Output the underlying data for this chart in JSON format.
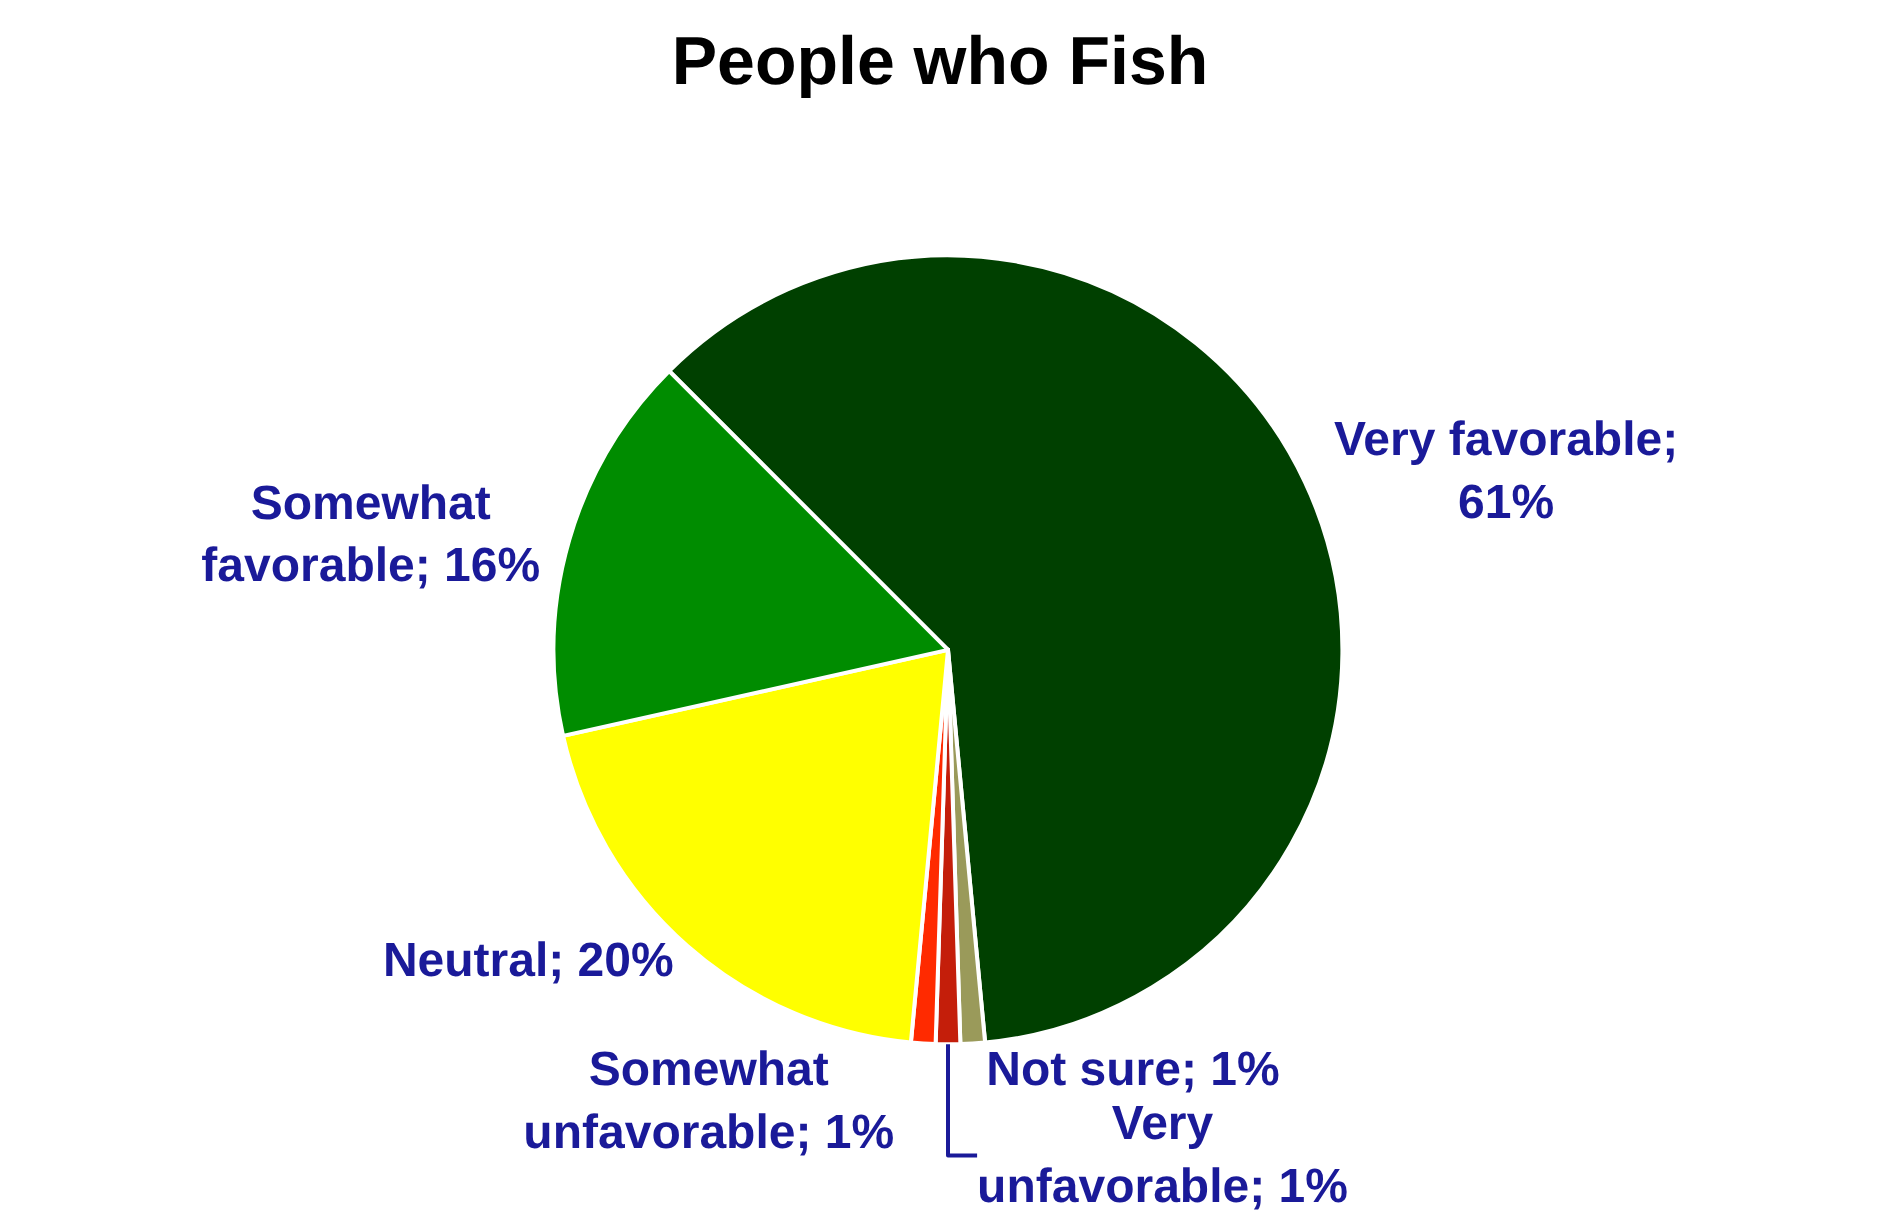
{
  "chart_data": {
    "type": "pie",
    "title": "People who Fish",
    "categories": [
      "Very favorable",
      "Not sure",
      "Very unfavorable",
      "Somewhat unfavorable",
      "Neutral",
      "Somewhat favorable"
    ],
    "values": [
      61,
      1,
      1,
      1,
      20,
      16
    ],
    "colors": [
      "#004000",
      "#9a9a5a",
      "#c41e0a",
      "#ff2a00",
      "#ffff00",
      "#008c00"
    ],
    "value_labels": [
      "; 61%",
      "; 1%",
      "; 1%",
      "; 1%",
      "; 20%",
      "; 16%"
    ],
    "legend": false
  }
}
